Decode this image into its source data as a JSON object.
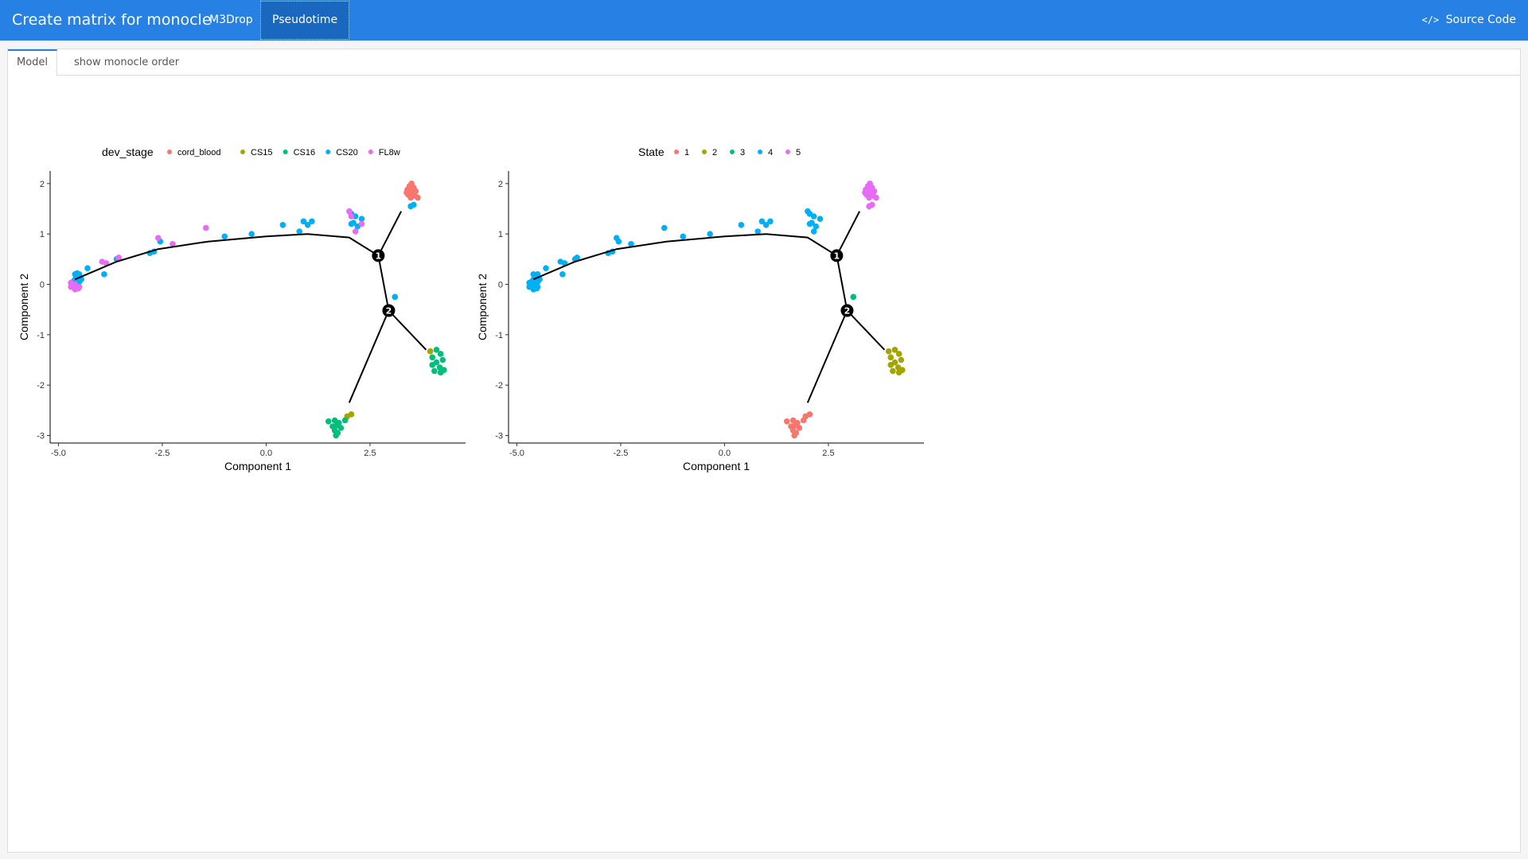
{
  "navbar": {
    "title": "Create matrix for monocle",
    "tabs": [
      {
        "label": "M3Drop",
        "active": false
      },
      {
        "label": "Pseudotime",
        "active": true
      }
    ],
    "source_code_label": "Source Code",
    "source_code_icon": "code-icon",
    "color": "#2780e3"
  },
  "subtabs": [
    {
      "label": "Model",
      "active": true
    },
    {
      "label": "show monocle order",
      "active": false
    }
  ],
  "chart_data": [
    {
      "type": "scatter",
      "title": "",
      "xlabel": "Component 1",
      "ylabel": "Component 2",
      "xlim": [
        -5.2,
        4.8
      ],
      "ylim": [
        -3.15,
        2.25
      ],
      "xticks": [
        "-5.0",
        "-2.5",
        "0.0",
        "2.5"
      ],
      "yticks": [
        "2",
        "1",
        "0",
        "-1",
        "-2",
        "-3"
      ],
      "legend": {
        "title": "dev_stage",
        "placement": "top",
        "entries": [
          {
            "label": "cord_blood",
            "color": "#F8766D"
          },
          {
            "label": "CS15",
            "color": "#A3A500"
          },
          {
            "label": "CS16",
            "color": "#00BF7D"
          },
          {
            "label": "CS20",
            "color": "#00B0F6"
          },
          {
            "label": "FL8w",
            "color": "#E76BF3"
          }
        ]
      },
      "trajectory": [
        [
          -4.6,
          0.1
        ],
        [
          -3.6,
          0.45
        ],
        [
          -2.6,
          0.7
        ],
        [
          -1.4,
          0.85
        ],
        [
          0.0,
          0.95
        ],
        [
          1.0,
          1.0
        ],
        [
          2.0,
          0.93
        ],
        [
          2.7,
          0.57
        ],
        [
          2.95,
          -0.52
        ],
        [
          2.0,
          -2.35
        ]
      ],
      "branches": [
        [
          [
            2.7,
            0.57
          ],
          [
            3.25,
            1.45
          ]
        ],
        [
          [
            2.95,
            -0.52
          ],
          [
            3.85,
            -1.3
          ]
        ]
      ],
      "branch_nodes": [
        {
          "label": "1",
          "x": 2.7,
          "y": 0.57
        },
        {
          "label": "2",
          "x": 2.95,
          "y": -0.52
        }
      ],
      "series": [
        {
          "name": "cord_blood",
          "points": [
            [
              3.5,
              2.0
            ],
            [
              3.45,
              1.95
            ],
            [
              3.55,
              1.92
            ],
            [
              3.4,
              1.88
            ],
            [
              3.6,
              1.85
            ],
            [
              3.5,
              1.82
            ],
            [
              3.42,
              1.78
            ],
            [
              3.58,
              1.76
            ],
            [
              3.48,
              1.72
            ],
            [
              3.65,
              1.72
            ],
            [
              3.52,
              1.9
            ],
            [
              3.38,
              1.82
            ]
          ]
        },
        {
          "name": "CS15",
          "points": [
            [
              3.95,
              -1.33
            ],
            [
              2.05,
              -2.58
            ],
            [
              1.95,
              -2.62
            ]
          ]
        },
        {
          "name": "CS16",
          "points": [
            [
              4.1,
              -1.3
            ],
            [
              4.2,
              -1.38
            ],
            [
              4.0,
              -1.45
            ],
            [
              4.25,
              -1.5
            ],
            [
              4.1,
              -1.55
            ],
            [
              4.0,
              -1.6
            ],
            [
              4.18,
              -1.65
            ],
            [
              4.28,
              -1.7
            ],
            [
              4.05,
              -1.72
            ],
            [
              4.2,
              -1.75
            ],
            [
              1.5,
              -2.72
            ],
            [
              1.65,
              -2.7
            ],
            [
              1.75,
              -2.75
            ],
            [
              1.7,
              -2.8
            ],
            [
              1.6,
              -2.82
            ],
            [
              1.8,
              -2.85
            ],
            [
              1.65,
              -2.9
            ],
            [
              1.72,
              -2.95
            ],
            [
              1.68,
              -3.0
            ],
            [
              1.9,
              -2.7
            ]
          ]
        },
        {
          "name": "CS20",
          "points": [
            [
              -4.6,
              0.2
            ],
            [
              -4.55,
              0.15
            ],
            [
              -4.5,
              0.2
            ],
            [
              -4.6,
              0.1
            ],
            [
              -4.45,
              0.1
            ],
            [
              -4.65,
              0.05
            ],
            [
              -4.5,
              0.05
            ],
            [
              -4.3,
              0.32
            ],
            [
              -3.9,
              0.2
            ],
            [
              -3.6,
              0.5
            ],
            [
              -2.8,
              0.62
            ],
            [
              -2.7,
              0.65
            ],
            [
              -2.55,
              0.85
            ],
            [
              -1.0,
              0.95
            ],
            [
              -0.35,
              1.0
            ],
            [
              0.4,
              1.18
            ],
            [
              0.8,
              1.05
            ],
            [
              0.9,
              1.25
            ],
            [
              1.0,
              1.18
            ],
            [
              1.1,
              1.25
            ],
            [
              2.05,
              1.4
            ],
            [
              2.15,
              1.35
            ],
            [
              2.1,
              1.22
            ],
            [
              2.3,
              1.3
            ],
            [
              2.05,
              1.2
            ],
            [
              2.2,
              1.15
            ],
            [
              3.48,
              1.55
            ],
            [
              3.55,
              1.58
            ],
            [
              3.1,
              -0.25
            ],
            [
              -4.55,
              0.22
            ],
            [
              -4.5,
              0.12
            ]
          ]
        },
        {
          "name": "FL8w",
          "points": [
            [
              -4.7,
              0.03
            ],
            [
              -4.6,
              0.0
            ],
            [
              -4.5,
              -0.05
            ],
            [
              -4.6,
              -0.1
            ],
            [
              -4.7,
              -0.05
            ],
            [
              -4.52,
              -0.08
            ],
            [
              -3.95,
              0.45
            ],
            [
              -3.85,
              0.42
            ],
            [
              -3.55,
              0.53
            ],
            [
              -2.6,
              0.92
            ],
            [
              -2.25,
              0.8
            ],
            [
              -1.45,
              1.12
            ],
            [
              2.0,
              1.45
            ],
            [
              2.05,
              1.35
            ],
            [
              2.3,
              1.2
            ],
            [
              2.15,
              1.05
            ]
          ]
        }
      ]
    },
    {
      "type": "scatter",
      "title": "",
      "xlabel": "Component 1",
      "ylabel": "Component 2",
      "xlim": [
        -5.2,
        4.8
      ],
      "ylim": [
        -3.15,
        2.25
      ],
      "xticks": [
        "-5.0",
        "-2.5",
        "0.0",
        "2.5"
      ],
      "yticks": [
        "2",
        "1",
        "0",
        "-1",
        "-2",
        "-3"
      ],
      "legend": {
        "title": "State",
        "placement": "top",
        "entries": [
          {
            "label": "1",
            "color": "#F8766D"
          },
          {
            "label": "2",
            "color": "#A3A500"
          },
          {
            "label": "3",
            "color": "#00BF7D"
          },
          {
            "label": "4",
            "color": "#00B0F6"
          },
          {
            "label": "5",
            "color": "#E76BF3"
          }
        ]
      },
      "trajectory": [
        [
          -4.6,
          0.1
        ],
        [
          -3.6,
          0.45
        ],
        [
          -2.6,
          0.7
        ],
        [
          -1.4,
          0.85
        ],
        [
          0.0,
          0.95
        ],
        [
          1.0,
          1.0
        ],
        [
          2.0,
          0.93
        ],
        [
          2.7,
          0.57
        ],
        [
          2.95,
          -0.52
        ],
        [
          2.0,
          -2.35
        ]
      ],
      "branches": [
        [
          [
            2.7,
            0.57
          ],
          [
            3.25,
            1.45
          ]
        ],
        [
          [
            2.95,
            -0.52
          ],
          [
            3.85,
            -1.3
          ]
        ]
      ],
      "branch_nodes": [
        {
          "label": "1",
          "x": 2.7,
          "y": 0.57
        },
        {
          "label": "2",
          "x": 2.95,
          "y": -0.52
        }
      ],
      "series": [
        {
          "name": "1",
          "points": [
            [
              1.5,
              -2.72
            ],
            [
              1.65,
              -2.7
            ],
            [
              1.75,
              -2.75
            ],
            [
              1.7,
              -2.8
            ],
            [
              1.6,
              -2.82
            ],
            [
              1.8,
              -2.85
            ],
            [
              1.65,
              -2.9
            ],
            [
              1.72,
              -2.95
            ],
            [
              1.68,
              -3.0
            ],
            [
              1.9,
              -2.7
            ],
            [
              2.05,
              -2.58
            ],
            [
              1.95,
              -2.62
            ]
          ]
        },
        {
          "name": "2",
          "points": [
            [
              3.95,
              -1.33
            ],
            [
              4.1,
              -1.3
            ],
            [
              4.2,
              -1.38
            ],
            [
              4.0,
              -1.45
            ],
            [
              4.25,
              -1.5
            ],
            [
              4.1,
              -1.55
            ],
            [
              4.0,
              -1.6
            ],
            [
              4.18,
              -1.65
            ],
            [
              4.28,
              -1.7
            ],
            [
              4.05,
              -1.72
            ],
            [
              4.2,
              -1.75
            ]
          ]
        },
        {
          "name": "3",
          "points": [
            [
              3.1,
              -0.25
            ]
          ]
        },
        {
          "name": "4",
          "points": [
            [
              -4.6,
              0.2
            ],
            [
              -4.55,
              0.15
            ],
            [
              -4.5,
              0.2
            ],
            [
              -4.6,
              0.1
            ],
            [
              -4.45,
              0.1
            ],
            [
              -4.65,
              0.05
            ],
            [
              -4.5,
              0.05
            ],
            [
              -4.7,
              0.03
            ],
            [
              -4.6,
              0.0
            ],
            [
              -4.5,
              -0.05
            ],
            [
              -4.6,
              -0.1
            ],
            [
              -4.7,
              -0.05
            ],
            [
              -4.52,
              -0.08
            ],
            [
              -4.3,
              0.32
            ],
            [
              -3.95,
              0.45
            ],
            [
              -3.85,
              0.42
            ],
            [
              -3.9,
              0.2
            ],
            [
              -3.6,
              0.5
            ],
            [
              -3.55,
              0.53
            ],
            [
              -2.8,
              0.62
            ],
            [
              -2.7,
              0.65
            ],
            [
              -2.6,
              0.92
            ],
            [
              -2.55,
              0.85
            ],
            [
              -2.25,
              0.8
            ],
            [
              -1.45,
              1.12
            ],
            [
              -1.0,
              0.95
            ],
            [
              -0.35,
              1.0
            ],
            [
              0.4,
              1.18
            ],
            [
              0.8,
              1.05
            ],
            [
              0.9,
              1.25
            ],
            [
              1.0,
              1.18
            ],
            [
              1.1,
              1.25
            ],
            [
              2.0,
              1.45
            ],
            [
              2.05,
              1.4
            ],
            [
              2.15,
              1.35
            ],
            [
              2.1,
              1.22
            ],
            [
              2.3,
              1.3
            ],
            [
              2.05,
              1.2
            ],
            [
              2.2,
              1.15
            ],
            [
              2.15,
              1.05
            ]
          ]
        },
        {
          "name": "5",
          "points": [
            [
              3.5,
              2.0
            ],
            [
              3.45,
              1.95
            ],
            [
              3.55,
              1.92
            ],
            [
              3.4,
              1.88
            ],
            [
              3.6,
              1.85
            ],
            [
              3.5,
              1.82
            ],
            [
              3.42,
              1.78
            ],
            [
              3.58,
              1.76
            ],
            [
              3.48,
              1.72
            ],
            [
              3.65,
              1.72
            ],
            [
              3.52,
              1.9
            ],
            [
              3.38,
              1.82
            ],
            [
              3.48,
              1.55
            ],
            [
              3.55,
              1.58
            ]
          ]
        }
      ]
    }
  ]
}
